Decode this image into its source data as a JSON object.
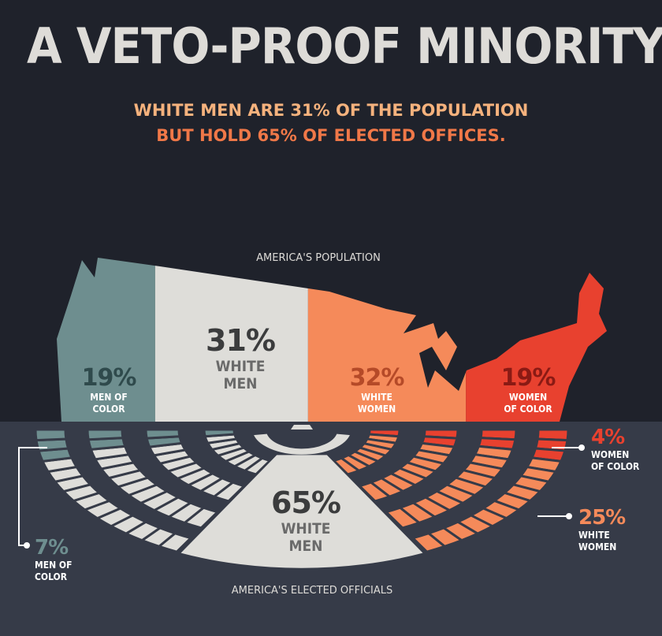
{
  "title": "A VETO-PROOF MINORITY",
  "subtitle": {
    "line1": "WHITE MEN ARE 31% OF THE POPULATION",
    "line2": "BUT HOLD 65% OF ELECTED OFFICES."
  },
  "colors": {
    "men_of_color": "#6e8e8f",
    "white_men": "#deddd9",
    "white_women": "#f58a5a",
    "women_of_color": "#e8412f",
    "background_top": "#1f222b",
    "background_bottom": "#363b48"
  },
  "chart_data": [
    {
      "type": "bar",
      "title": "AMERICA'S POPULATION",
      "categories": [
        "MEN OF COLOR",
        "WHITE MEN",
        "WHITE WOMEN",
        "WOMEN OF COLOR"
      ],
      "values": [
        19,
        31,
        32,
        19
      ],
      "labels": [
        {
          "pct": "19%",
          "name1": "MEN OF",
          "name2": "COLOR"
        },
        {
          "pct": "31%",
          "name1": "WHITE",
          "name2": "MEN"
        },
        {
          "pct": "32%",
          "name1": "WHITE",
          "name2": "WOMEN"
        },
        {
          "pct": "19%",
          "name1": "WOMEN",
          "name2": "OF COLOR"
        }
      ]
    },
    {
      "type": "pie",
      "title": "AMERICA'S ELECTED OFFICIALS",
      "categories": [
        "MEN OF COLOR",
        "WHITE MEN",
        "WHITE WOMEN",
        "WOMEN OF COLOR"
      ],
      "values": [
        7,
        65,
        25,
        4
      ],
      "labels": [
        {
          "pct": "7%",
          "name1": "MEN OF",
          "name2": "COLOR"
        },
        {
          "pct": "65%",
          "name1": "WHITE",
          "name2": "MEN"
        },
        {
          "pct": "25%",
          "name1": "WHITE",
          "name2": "WOMEN"
        },
        {
          "pct": "4%",
          "name1": "WOMEN",
          "name2": "OF COLOR"
        }
      ]
    }
  ]
}
